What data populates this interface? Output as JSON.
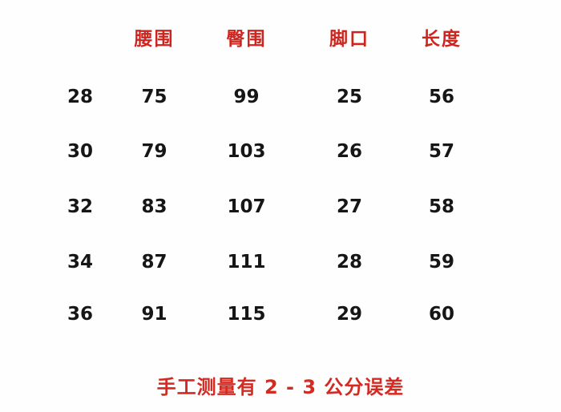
{
  "chart_data": {
    "type": "table",
    "title": "",
    "columns": [
      "",
      "腰围",
      "臀围",
      "脚口",
      "长度"
    ],
    "rows": [
      [
        28,
        75,
        99,
        25,
        56
      ],
      [
        30,
        79,
        103,
        26,
        57
      ],
      [
        32,
        83,
        107,
        27,
        58
      ],
      [
        34,
        87,
        111,
        28,
        59
      ],
      [
        36,
        91,
        115,
        29,
        60
      ]
    ],
    "note": "手工测量有 2 - 3 公分误差"
  },
  "table": {
    "headers": [
      "腰围",
      "臀围",
      "脚口",
      "长度"
    ],
    "rows": [
      [
        "28",
        "75",
        "99",
        "25",
        "56"
      ],
      [
        "30",
        "79",
        "103",
        "26",
        "57"
      ],
      [
        "32",
        "83",
        "107",
        "27",
        "58"
      ],
      [
        "34",
        "87",
        "111",
        "28",
        "59"
      ],
      [
        "36",
        "91",
        "115",
        "29",
        "60"
      ]
    ]
  },
  "note": {
    "text": "手工测量有 2 - 3 公分误差"
  },
  "colors": {
    "header_red": "#cf241e",
    "note_red": "#d32a22",
    "number_black": "#161616",
    "background": "#fefefe"
  }
}
